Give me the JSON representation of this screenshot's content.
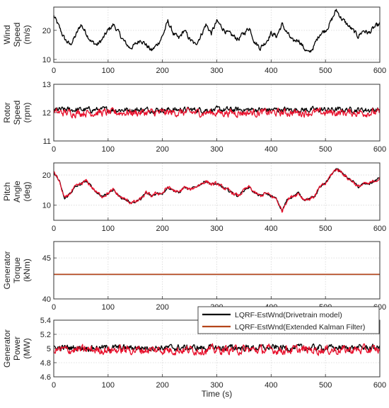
{
  "chart_data": [
    {
      "type": "line",
      "ylabel_lines": [
        "Wind",
        "Speed",
        "(m/s)"
      ],
      "xlim": [
        0,
        600
      ],
      "ylim": [
        9,
        28
      ],
      "x_ticks": [
        "0",
        "100",
        "200",
        "300",
        "400",
        "500",
        "600"
      ],
      "y_ticks": [
        {
          "value": 10,
          "label": "10"
        },
        {
          "value": 20,
          "label": "20"
        }
      ],
      "grid": true,
      "series": [
        {
          "color": "#000000",
          "x": [
            0,
            10,
            20,
            30,
            40,
            50,
            60,
            70,
            80,
            90,
            100,
            110,
            120,
            130,
            140,
            150,
            160,
            170,
            180,
            190,
            200,
            210,
            220,
            230,
            240,
            250,
            260,
            270,
            280,
            290,
            300,
            310,
            320,
            330,
            340,
            350,
            360,
            370,
            380,
            390,
            400,
            410,
            420,
            430,
            440,
            450,
            460,
            470,
            480,
            490,
            500,
            510,
            520,
            530,
            540,
            550,
            560,
            570,
            580,
            590,
            600
          ],
          "y": [
            25,
            21,
            17,
            15,
            18,
            22,
            19,
            16,
            15,
            17,
            20,
            22,
            19,
            16,
            14,
            15,
            17,
            15,
            13,
            15,
            18,
            23,
            19,
            17,
            20,
            17,
            15,
            18,
            22,
            19,
            23,
            21,
            19,
            18,
            17,
            19,
            21,
            16,
            14,
            16,
            19,
            18,
            22,
            19,
            16,
            17,
            14,
            12,
            15,
            19,
            20,
            23,
            27,
            24,
            22,
            20,
            18,
            20,
            19,
            21,
            22
          ],
          "noise": 1.4
        }
      ]
    },
    {
      "type": "line",
      "ylabel_lines": [
        "Rotor",
        "Speed",
        "(rpm)"
      ],
      "xlim": [
        0,
        600
      ],
      "ylim": [
        11,
        13
      ],
      "x_ticks": [
        "0",
        "100",
        "200",
        "300",
        "400",
        "500",
        "600"
      ],
      "y_ticks": [
        {
          "value": 11,
          "label": "11"
        },
        {
          "value": 12,
          "label": "12"
        },
        {
          "value": 13,
          "label": "13"
        }
      ],
      "grid": true,
      "series": [
        {
          "color": "#000000",
          "x": [
            0,
            600
          ],
          "y": [
            12.1,
            12.1
          ],
          "noise": 0.16
        },
        {
          "color": "#e8112d",
          "x": [
            0,
            600
          ],
          "y": [
            12.0,
            12.0
          ],
          "noise": 0.22
        }
      ]
    },
    {
      "type": "line",
      "ylabel_lines": [
        "Pitch",
        "Angle",
        "(deg)"
      ],
      "xlim": [
        0,
        600
      ],
      "ylim": [
        5,
        24
      ],
      "x_ticks": [
        "0",
        "100",
        "200",
        "300",
        "400",
        "500",
        "600"
      ],
      "y_ticks": [
        {
          "value": 10,
          "label": "10"
        },
        {
          "value": 20,
          "label": "20"
        }
      ],
      "grid": true,
      "series": [
        {
          "color": "#000000",
          "x": [
            0,
            10,
            20,
            30,
            40,
            50,
            60,
            70,
            80,
            90,
            100,
            110,
            120,
            130,
            140,
            150,
            160,
            170,
            180,
            190,
            200,
            210,
            220,
            230,
            240,
            250,
            260,
            270,
            280,
            290,
            300,
            310,
            320,
            330,
            340,
            350,
            360,
            370,
            380,
            390,
            400,
            410,
            420,
            430,
            440,
            450,
            460,
            470,
            480,
            490,
            500,
            510,
            520,
            530,
            540,
            550,
            560,
            570,
            580,
            590,
            600
          ],
          "y": [
            21,
            18,
            12,
            14,
            16,
            17,
            18,
            16,
            14,
            13,
            14,
            15,
            13,
            12,
            11,
            11,
            12,
            14,
            13,
            14,
            14,
            16,
            15,
            14,
            16,
            15,
            16,
            17,
            18,
            17,
            17,
            16,
            15,
            14,
            13,
            15,
            16,
            14,
            13,
            14,
            13,
            12,
            8,
            12,
            13,
            14,
            12,
            12,
            13,
            16,
            17,
            20,
            22,
            21,
            19,
            18,
            16,
            17,
            17,
            18,
            19
          ],
          "noise": 0.7
        },
        {
          "color": "#e8112d",
          "x": [
            0,
            10,
            20,
            30,
            40,
            50,
            60,
            70,
            80,
            90,
            100,
            110,
            120,
            130,
            140,
            150,
            160,
            170,
            180,
            190,
            200,
            210,
            220,
            230,
            240,
            250,
            260,
            270,
            280,
            290,
            300,
            310,
            320,
            330,
            340,
            350,
            360,
            370,
            380,
            390,
            400,
            410,
            420,
            430,
            440,
            450,
            460,
            470,
            480,
            490,
            500,
            510,
            520,
            530,
            540,
            550,
            560,
            570,
            580,
            590,
            600
          ],
          "y": [
            21,
            18,
            12,
            14,
            16,
            17,
            18,
            16,
            14,
            13,
            14,
            15,
            13,
            12,
            11,
            11,
            12,
            14,
            13,
            14,
            14,
            16,
            15,
            14,
            16,
            15,
            16,
            17,
            18,
            17,
            17,
            16,
            15,
            14,
            13,
            15,
            16,
            14,
            13,
            14,
            13,
            12,
            8,
            12,
            13,
            14,
            12,
            12,
            13,
            16,
            17,
            20,
            22,
            21,
            19,
            18,
            16,
            17,
            17,
            18,
            19
          ],
          "noise": 1.0
        }
      ]
    },
    {
      "type": "line",
      "ylabel_lines": [
        "Generator",
        "Torque",
        "(kNm)"
      ],
      "xlim": [
        0,
        600
      ],
      "ylim": [
        40,
        47
      ],
      "x_ticks": [
        "0",
        "100",
        "200",
        "300",
        "400",
        "500",
        "600"
      ],
      "y_ticks": [
        {
          "value": 40,
          "label": "40"
        },
        {
          "value": 45,
          "label": "45"
        }
      ],
      "grid": true,
      "series": [
        {
          "color": "#000000",
          "x": [
            0,
            600
          ],
          "y": [
            43.0,
            43.0
          ],
          "noise": 0
        },
        {
          "color": "#b5451b",
          "x": [
            0,
            600
          ],
          "y": [
            43.0,
            43.0
          ],
          "noise": 0
        }
      ]
    },
    {
      "type": "line",
      "ylabel_lines": [
        "Generator",
        "Power",
        "(MW)"
      ],
      "xlim": [
        0,
        600
      ],
      "ylim": [
        4.6,
        5.4
      ],
      "x_ticks": [
        "0",
        "100",
        "200",
        "300",
        "400",
        "500",
        "600"
      ],
      "y_ticks": [
        {
          "value": 4.6,
          "label": "4.6"
        },
        {
          "value": 4.8,
          "label": "4.8"
        },
        {
          "value": 5.0,
          "label": "5"
        },
        {
          "value": 5.2,
          "label": "5.2"
        },
        {
          "value": 5.4,
          "label": "5.4"
        }
      ],
      "grid": true,
      "xlabel": "Time (s)",
      "legend": {
        "placement": "top-right",
        "entries": [
          {
            "label": "LQRF-EstWnd(Drivetrain model)",
            "color": "#000000"
          },
          {
            "label": "LQRF-EstWnd(Extended Kalman Filter)",
            "color": "#b5451b"
          }
        ]
      },
      "series": [
        {
          "color": "#000000",
          "x": [
            0,
            600
          ],
          "y": [
            5.01,
            5.01
          ],
          "noise": 0.07
        },
        {
          "color": "#e8112d",
          "x": [
            0,
            600
          ],
          "y": [
            4.98,
            4.98
          ],
          "noise": 0.1
        }
      ]
    }
  ]
}
